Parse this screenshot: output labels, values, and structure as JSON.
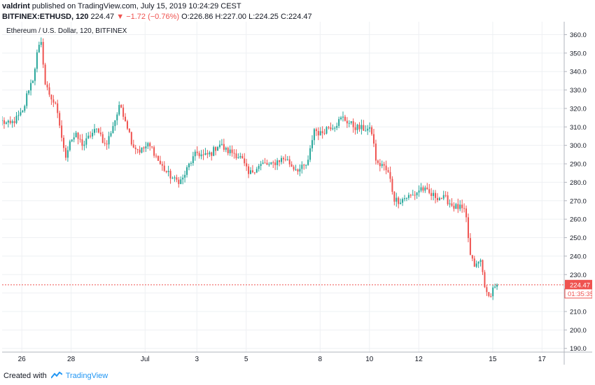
{
  "header": {
    "author": "valdrint",
    "published_text": "published on TradingView.com, July 15, 2019 10:24:29 CEST",
    "symbol": "BITFINEX:ETHUSD, 120",
    "last": "224.47",
    "change": "▼ −1.72 (−0.76%)",
    "ohlc": "O:226.86 H:227.00 L:224.25 C:224.47"
  },
  "footer": {
    "created_with": "Created with",
    "brand": "TradingView"
  },
  "colors": {
    "up": "#26a69a",
    "down": "#ef5350",
    "grid": "#eef0f3",
    "price_line": "#ef5350",
    "border": "#b2b5be"
  },
  "chart_data": {
    "type": "candlestick",
    "title": "Ethereum / U.S. Dollar, 120, BITFINEX",
    "ylim": [
      188,
      367
    ],
    "y_ticks": [
      190,
      200,
      210,
      220,
      230,
      240,
      250,
      260,
      270,
      280,
      290,
      300,
      310,
      320,
      330,
      340,
      350,
      360
    ],
    "x_ticks": [
      {
        "label": "26",
        "x": 0.8
      },
      {
        "label": "28",
        "x": 2.8
      },
      {
        "label": "Jul",
        "x": 5.8
      },
      {
        "label": "3",
        "x": 7.9
      },
      {
        "label": "5",
        "x": 9.9
      },
      {
        "label": "8",
        "x": 12.9
      },
      {
        "label": "10",
        "x": 14.9
      },
      {
        "label": "12",
        "x": 16.9
      },
      {
        "label": "15",
        "x": 19.9
      },
      {
        "label": "17",
        "x": 21.9
      }
    ],
    "xlim": [
      0,
      22.8
    ],
    "last_price": 224.47,
    "last_price_label": "224.47",
    "countdown_label": "01:35:35",
    "anchors": [
      [
        0.0,
        313
      ],
      [
        0.3,
        311
      ],
      [
        0.55,
        314
      ],
      [
        0.85,
        318
      ],
      [
        1.05,
        330
      ],
      [
        1.25,
        336
      ],
      [
        1.45,
        352
      ],
      [
        1.6,
        355
      ],
      [
        1.75,
        333
      ],
      [
        1.95,
        327
      ],
      [
        2.15,
        322
      ],
      [
        2.35,
        310
      ],
      [
        2.55,
        293
      ],
      [
        2.75,
        303
      ],
      [
        3.0,
        305
      ],
      [
        3.3,
        300
      ],
      [
        3.6,
        306
      ],
      [
        3.9,
        309
      ],
      [
        4.2,
        299
      ],
      [
        4.5,
        311
      ],
      [
        4.8,
        322
      ],
      [
        5.05,
        312
      ],
      [
        5.3,
        300
      ],
      [
        5.6,
        297
      ],
      [
        5.9,
        300
      ],
      [
        6.1,
        298
      ],
      [
        6.4,
        290
      ],
      [
        6.7,
        285
      ],
      [
        7.0,
        281
      ],
      [
        7.3,
        281
      ],
      [
        7.6,
        290
      ],
      [
        7.9,
        296
      ],
      [
        8.2,
        294
      ],
      [
        8.5,
        296
      ],
      [
        8.8,
        301
      ],
      [
        9.1,
        297
      ],
      [
        9.4,
        296
      ],
      [
        9.7,
        293
      ],
      [
        10.0,
        284
      ],
      [
        10.3,
        288
      ],
      [
        10.6,
        290
      ],
      [
        10.9,
        289
      ],
      [
        11.2,
        292
      ],
      [
        11.5,
        293
      ],
      [
        11.8,
        288
      ],
      [
        12.1,
        287
      ],
      [
        12.4,
        290
      ],
      [
        12.65,
        309
      ],
      [
        12.9,
        306
      ],
      [
        13.2,
        310
      ],
      [
        13.5,
        311
      ],
      [
        13.8,
        315
      ],
      [
        14.0,
        313
      ],
      [
        14.3,
        310
      ],
      [
        14.6,
        309
      ],
      [
        14.8,
        309
      ],
      [
        15.0,
        307
      ],
      [
        15.2,
        289
      ],
      [
        15.4,
        290
      ],
      [
        15.7,
        284
      ],
      [
        15.9,
        271
      ],
      [
        16.1,
        270
      ],
      [
        16.4,
        272
      ],
      [
        16.7,
        273
      ],
      [
        17.0,
        277
      ],
      [
        17.4,
        273
      ],
      [
        17.7,
        272
      ],
      [
        18.0,
        271
      ],
      [
        18.3,
        267
      ],
      [
        18.6,
        266
      ],
      [
        18.8,
        263
      ],
      [
        19.0,
        239
      ],
      [
        19.2,
        234
      ],
      [
        19.4,
        238
      ],
      [
        19.6,
        223
      ],
      [
        19.7,
        216
      ],
      [
        19.85,
        221
      ],
      [
        20.0,
        224.5
      ],
      [
        20.1,
        226.9
      ]
    ],
    "candle_interval_x": 0.0833
  }
}
